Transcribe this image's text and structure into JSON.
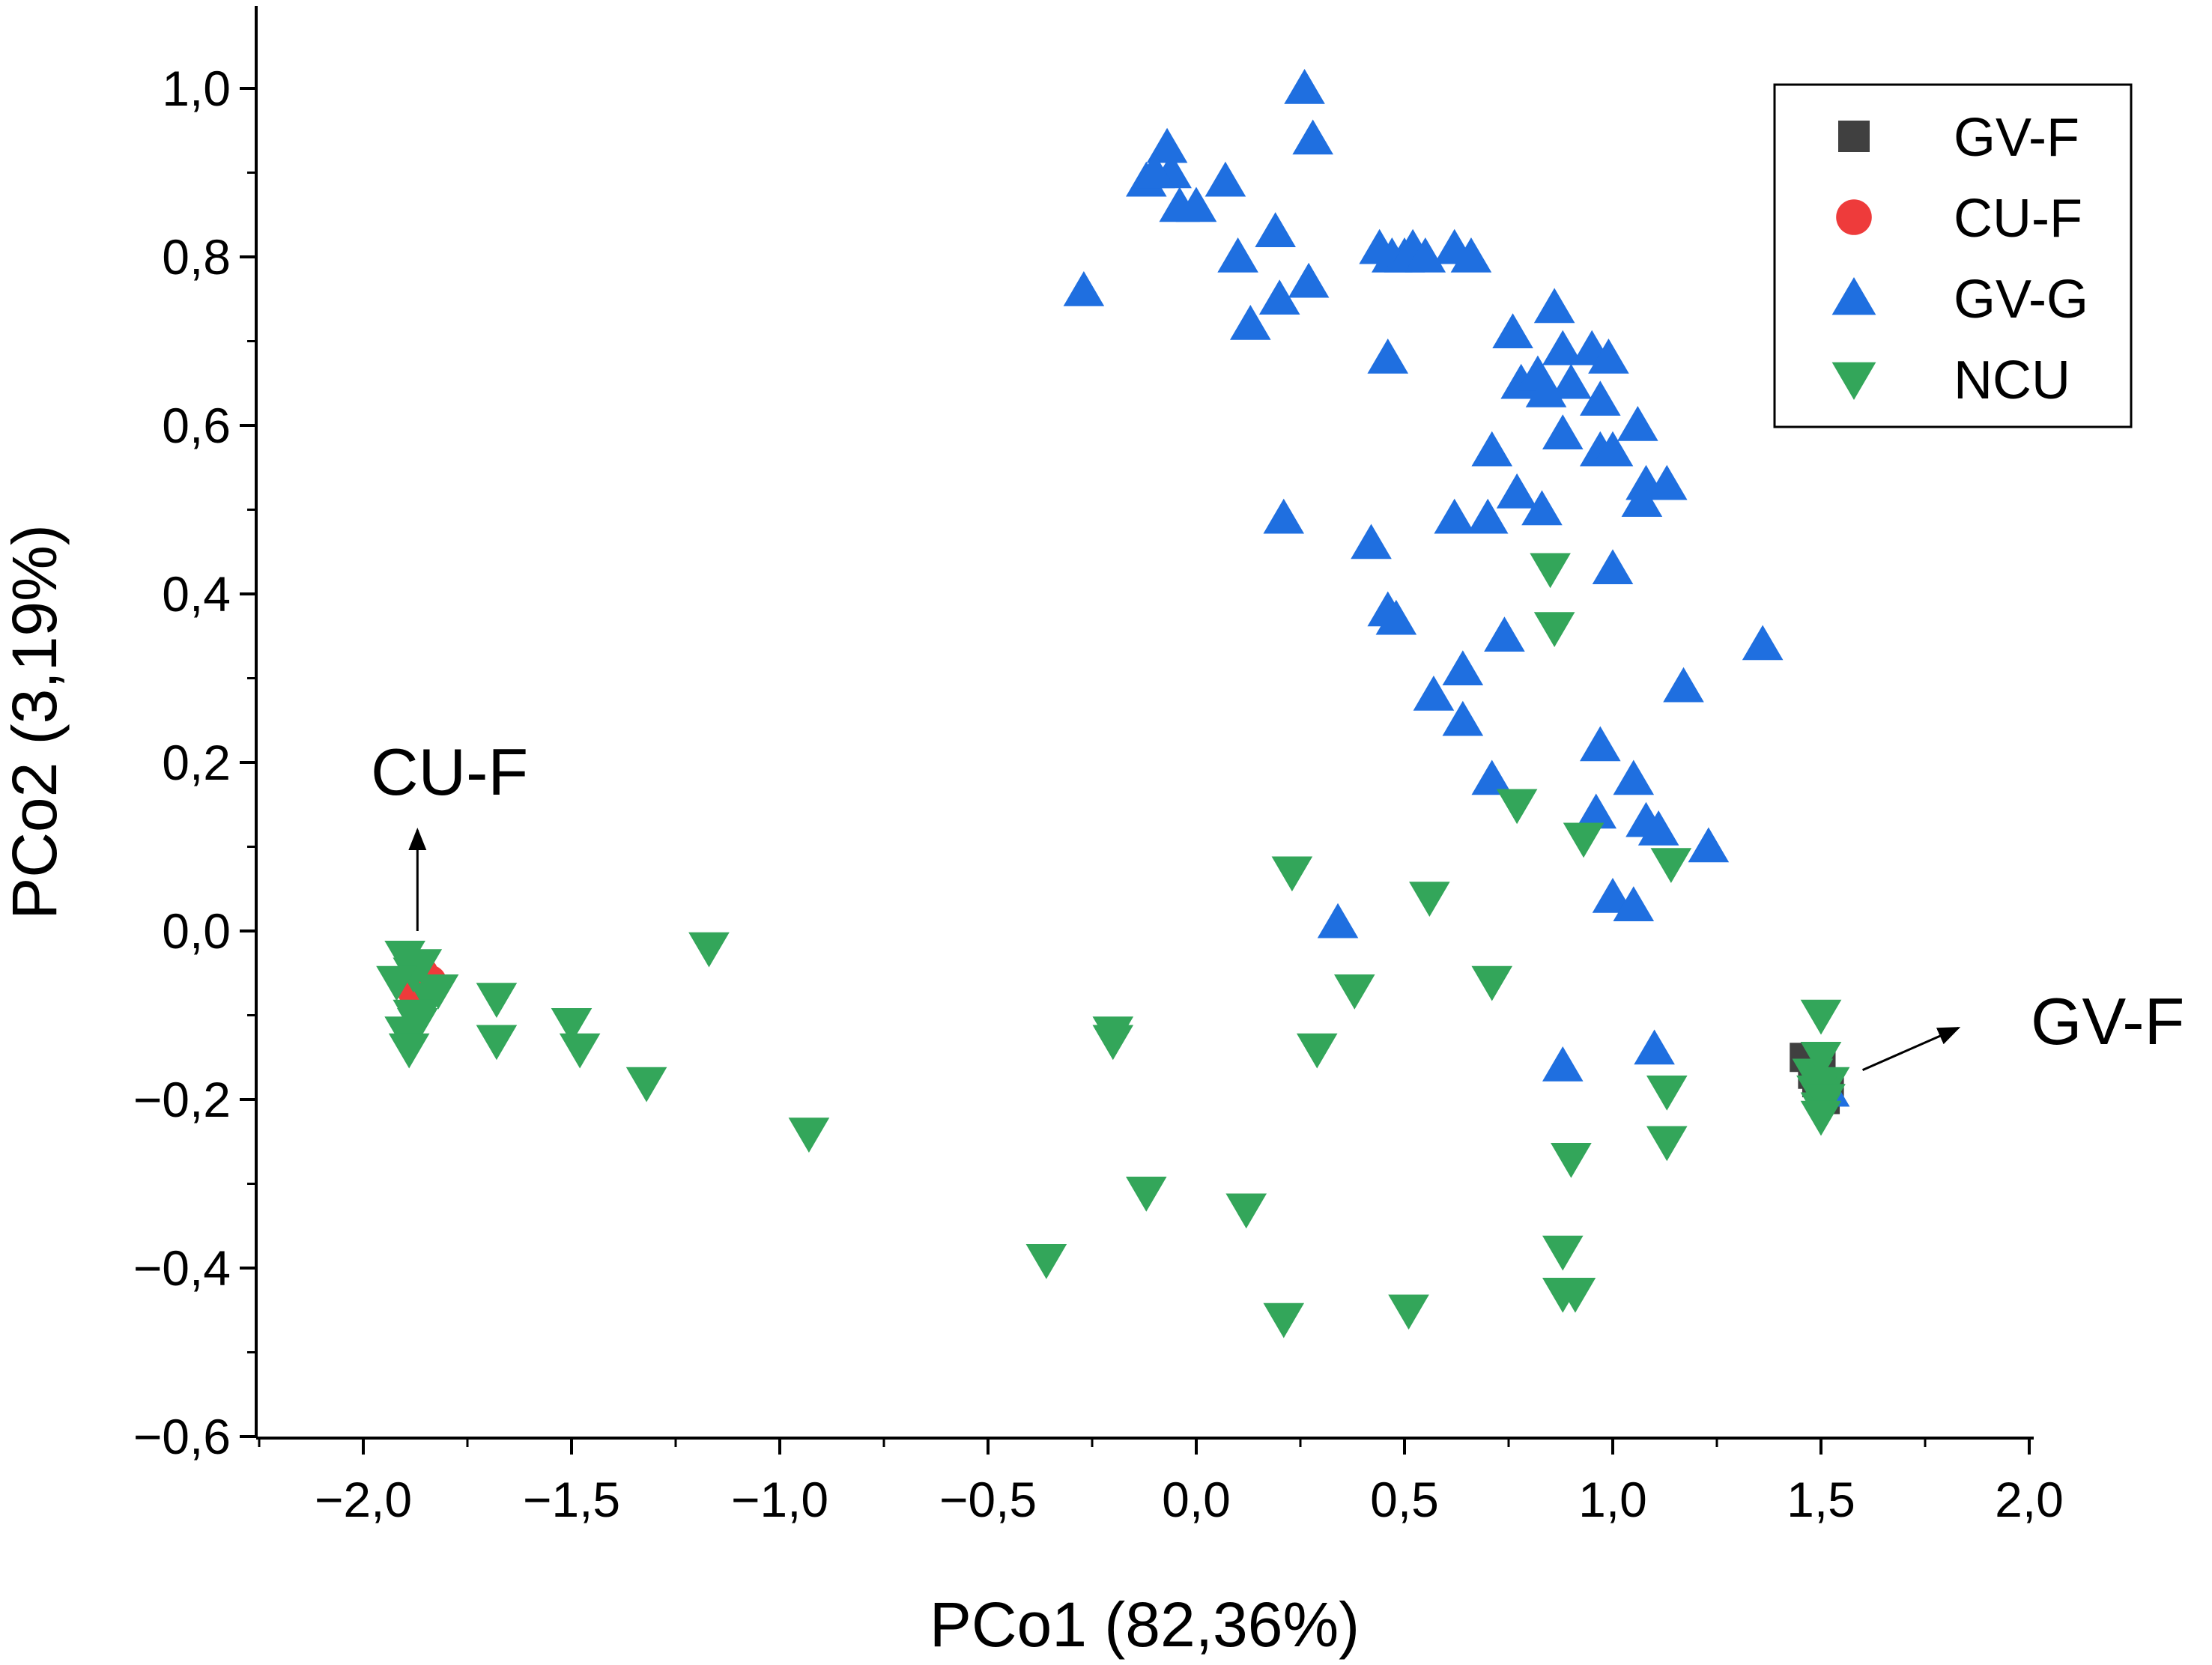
{
  "chart_data": {
    "type": "scatter",
    "title": "",
    "xlabel": "PCo1 (82,36%)",
    "ylabel": "PCo2 (3,19%)",
    "xlim": [
      -2.25,
      2.0
    ],
    "ylim": [
      -0.6,
      1.1
    ],
    "xticks": [
      -2.0,
      -1.5,
      -1.0,
      -0.5,
      0.0,
      0.5,
      1.0,
      1.5,
      2.0
    ],
    "xtick_labels": [
      "−2,0",
      "−1,5",
      "−1,0",
      "−0,5",
      "0,0",
      "0,5",
      "1,0",
      "1,5",
      "2,0"
    ],
    "yticks": [
      -0.6,
      -0.4,
      -0.2,
      0.0,
      0.2,
      0.4,
      0.6,
      0.8,
      1.0
    ],
    "ytick_labels": [
      "−0,6",
      "−0,4",
      "−0,2",
      "0,0",
      "0,2",
      "0,4",
      "0,6",
      "0,8",
      "1,0"
    ],
    "grid": false,
    "legend_position": "top-right",
    "series": [
      {
        "name": "GV-F",
        "marker": "square",
        "color": "#404040",
        "x": [
          1.46,
          1.48,
          1.5,
          1.52,
          1.49,
          1.51
        ],
        "y": [
          -0.15,
          -0.17,
          -0.16,
          -0.19,
          -0.18,
          -0.2
        ]
      },
      {
        "name": "CU-F",
        "marker": "circle",
        "color": "#ee3b3b",
        "x": [
          -1.9,
          -1.88,
          -1.86,
          -1.84,
          -1.87
        ],
        "y": [
          -0.06,
          -0.07,
          -0.05,
          -0.06,
          -0.08
        ]
      },
      {
        "name": "GV-G",
        "marker": "triangle-up",
        "color": "#1f6fe0",
        "x": [
          0.26,
          0.28,
          -0.07,
          -0.06,
          -0.12,
          -0.1,
          -0.04,
          0.07,
          0.0,
          0.19,
          0.1,
          0.2,
          0.27,
          0.13,
          -0.27,
          0.44,
          0.47,
          0.5,
          0.52,
          0.55,
          0.62,
          0.66,
          0.46,
          0.86,
          0.76,
          0.78,
          0.82,
          0.84,
          0.88,
          0.9,
          0.95,
          0.99,
          0.97,
          1.06,
          0.88,
          0.97,
          1.0,
          1.08,
          1.13,
          1.07,
          0.71,
          0.77,
          0.83,
          0.62,
          0.7,
          1.0,
          0.21,
          0.42,
          0.46,
          0.48,
          1.36,
          0.64,
          0.74,
          1.17,
          0.57,
          0.64,
          0.71,
          0.97,
          1.05,
          0.96,
          1.08,
          1.11,
          1.23,
          1.0,
          1.05,
          0.34,
          0.88,
          1.1,
          1.52
        ],
        "y": [
          1.0,
          0.94,
          0.93,
          0.9,
          0.89,
          0.9,
          0.86,
          0.89,
          0.86,
          0.83,
          0.8,
          0.75,
          0.77,
          0.72,
          0.76,
          0.81,
          0.8,
          0.8,
          0.81,
          0.8,
          0.81,
          0.8,
          0.68,
          0.74,
          0.71,
          0.65,
          0.66,
          0.64,
          0.69,
          0.65,
          0.69,
          0.68,
          0.63,
          0.6,
          0.59,
          0.57,
          0.57,
          0.53,
          0.53,
          0.51,
          0.57,
          0.52,
          0.5,
          0.49,
          0.49,
          0.43,
          0.49,
          0.46,
          0.38,
          0.37,
          0.34,
          0.31,
          0.35,
          0.29,
          0.28,
          0.25,
          0.18,
          0.22,
          0.18,
          0.14,
          0.13,
          0.12,
          0.1,
          0.04,
          0.03,
          0.01,
          -0.16,
          -0.14,
          -0.19
        ]
      },
      {
        "name": "NCU",
        "marker": "triangle-down",
        "color": "#33a65a",
        "x": [
          -1.9,
          -1.88,
          -1.86,
          -1.92,
          -1.84,
          -1.88,
          -1.9,
          -1.87,
          -1.82,
          -1.89,
          -1.68,
          -1.68,
          -1.5,
          -1.48,
          -1.32,
          -1.17,
          -0.93,
          -0.36,
          -0.2,
          -0.2,
          -0.12,
          0.12,
          0.21,
          0.23,
          0.29,
          0.38,
          0.51,
          0.56,
          0.71,
          0.77,
          0.85,
          0.86,
          0.9,
          0.93,
          0.88,
          0.91,
          0.88,
          1.13,
          1.13,
          1.14,
          1.5,
          1.48,
          1.5,
          1.52,
          1.49,
          1.5,
          1.51,
          1.5
        ],
        "y": [
          -0.03,
          -0.05,
          -0.04,
          -0.06,
          -0.08,
          -0.1,
          -0.12,
          -0.11,
          -0.07,
          -0.14,
          -0.08,
          -0.13,
          -0.11,
          -0.14,
          -0.18,
          -0.02,
          -0.24,
          -0.39,
          -0.12,
          -0.13,
          -0.31,
          -0.33,
          -0.46,
          0.07,
          -0.14,
          -0.07,
          -0.45,
          0.04,
          -0.06,
          0.15,
          0.43,
          0.36,
          -0.27,
          0.11,
          -0.38,
          -0.43,
          -0.43,
          -0.19,
          -0.25,
          0.08,
          -0.1,
          -0.17,
          -0.15,
          -0.18,
          -0.19,
          -0.21,
          -0.2,
          -0.22
        ]
      }
    ],
    "annotations": [
      {
        "text": "CU-F",
        "arrow_from": [
          -1.87,
          0.0
        ],
        "arrow_to": [
          -1.87,
          0.12
        ]
      },
      {
        "text": "GV-F",
        "arrow_from": [
          1.6,
          -0.165
        ],
        "arrow_to": [
          1.83,
          -0.115
        ]
      }
    ]
  }
}
